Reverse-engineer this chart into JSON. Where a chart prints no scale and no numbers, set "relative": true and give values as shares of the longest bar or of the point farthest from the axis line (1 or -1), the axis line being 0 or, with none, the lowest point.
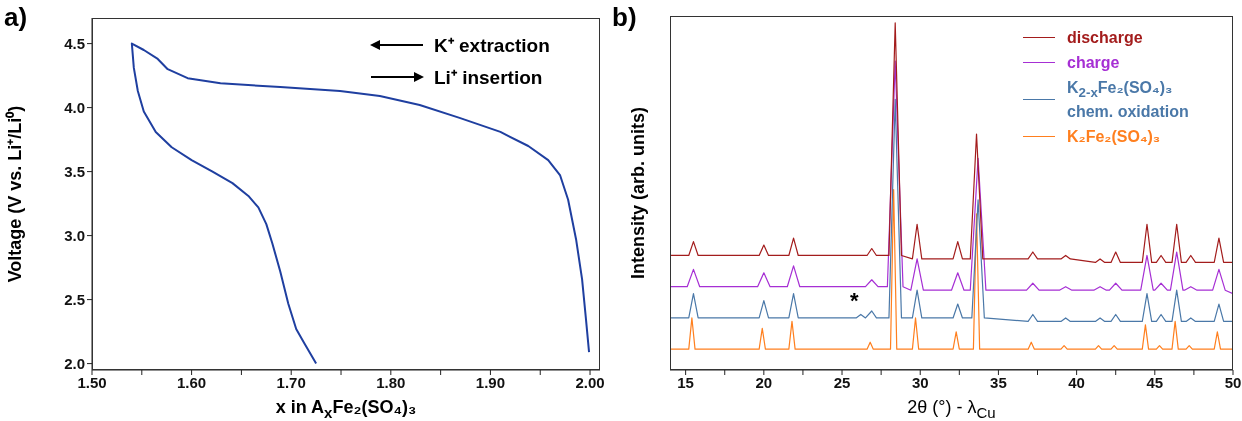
{
  "chart_data": [
    {
      "type": "line",
      "title": "a)",
      "xlabel": "x in A$_{x}$Fe₂(SO₄)₃",
      "ylabel": "Voltage (V vs. Li⁺/Li⁰)",
      "xlim": [
        1.5,
        2.01
      ],
      "xticks": [
        {
          "value": 1.5,
          "label": "1.50"
        },
        {
          "value": 1.55,
          "label": null
        },
        {
          "value": 1.6,
          "label": "1.60"
        },
        {
          "value": 1.65,
          "label": null
        },
        {
          "value": 1.7,
          "label": "1.70"
        },
        {
          "value": 1.75,
          "label": null
        },
        {
          "value": 1.8,
          "label": "1.80"
        },
        {
          "value": 1.85,
          "label": null
        },
        {
          "value": 1.9,
          "label": "1.90"
        },
        {
          "value": 1.95,
          "label": null
        },
        {
          "value": 2.0,
          "label": "2.00"
        }
      ],
      "ylim": [
        1.95,
        4.7
      ],
      "yticks": [
        {
          "value": 2.0,
          "label": "2.0"
        },
        2.5,
        {
          "value": 3.0,
          "label": "3.0"
        },
        3.5,
        {
          "value": 4.0,
          "label": "4.0"
        },
        4.5
      ],
      "annotations": [
        "K⁺ extraction",
        "Li⁺ insertion"
      ],
      "grid": false,
      "legend": false,
      "series": [
        {
          "color": "#1f3fa0",
          "x": [
            1.725,
            1.713,
            1.705,
            1.697,
            1.689,
            1.681,
            1.675,
            1.667,
            1.657,
            1.641,
            1.621,
            1.6,
            1.58,
            1.564,
            1.552,
            1.546,
            1.542,
            1.54,
            1.552,
            1.566,
            1.576,
            1.596,
            1.629,
            1.689,
            1.749,
            1.789,
            1.829,
            1.869,
            1.91,
            1.938,
            1.958,
            1.97,
            1.978,
            1.986,
            1.992,
            1.996,
            1.999
          ],
          "values": [
            2.0,
            2.16,
            2.27,
            2.47,
            2.72,
            2.94,
            3.09,
            3.22,
            3.31,
            3.41,
            3.5,
            3.59,
            3.69,
            3.81,
            3.97,
            4.13,
            4.31,
            4.5,
            4.45,
            4.38,
            4.3,
            4.23,
            4.19,
            4.16,
            4.13,
            4.09,
            4.02,
            3.92,
            3.81,
            3.7,
            3.59,
            3.47,
            3.28,
            2.97,
            2.66,
            2.34,
            2.09
          ]
        }
      ]
    },
    {
      "type": "line",
      "title": "b)",
      "xlabel": "2θ (°) - λ$_{Cu}$",
      "ylabel": "Intensity (arb. units)",
      "relative": true,
      "tick_labels": "x",
      "xlim": [
        14,
        50
      ],
      "xticks": [
        {
          "value": 15,
          "label": "15"
        },
        {
          "value": 17.5,
          "label": null
        },
        20,
        {
          "value": 22.5,
          "label": null
        },
        25,
        {
          "value": 27.5,
          "label": null
        },
        30,
        {
          "value": 32.5,
          "label": null
        },
        35,
        {
          "value": 37.5,
          "label": null
        },
        40,
        {
          "value": 42.5,
          "label": null
        },
        45,
        {
          "value": 47.5,
          "label": null
        },
        50
      ],
      "annotations": [
        "*"
      ],
      "grid": false,
      "legend": "top right",
      "series": [
        {
          "name": "discharge",
          "color": "#a31c1c",
          "x": [
            14,
            15.2,
            15.5,
            15.8,
            19.7,
            20,
            20.3,
            21.6,
            21.9,
            22.2,
            26.6,
            26.9,
            27.2,
            28.0,
            28.4,
            28.8,
            29.5,
            29.8,
            30.1,
            32.1,
            32.4,
            32.7,
            33.2,
            33.6,
            34.0,
            36.9,
            37.2,
            37.5,
            39.0,
            39.3,
            39.6,
            41.2,
            41.5,
            41.8,
            42.2,
            42.5,
            42.8,
            44.2,
            44.5,
            44.8,
            45.1,
            45.4,
            45.7,
            46.1,
            46.4,
            46.7,
            47.0,
            47.3,
            47.6,
            48.8,
            49.1,
            49.4,
            50
          ],
          "values": [
            0.33,
            0.33,
            0.37,
            0.33,
            0.33,
            0.36,
            0.33,
            0.33,
            0.38,
            0.33,
            0.33,
            0.35,
            0.33,
            0.33,
            1.0,
            0.33,
            0.32,
            0.42,
            0.32,
            0.32,
            0.37,
            0.32,
            0.32,
            0.68,
            0.32,
            0.32,
            0.34,
            0.32,
            0.32,
            0.33,
            0.32,
            0.31,
            0.32,
            0.31,
            0.31,
            0.34,
            0.31,
            0.31,
            0.42,
            0.31,
            0.31,
            0.33,
            0.31,
            0.31,
            0.42,
            0.31,
            0.31,
            0.33,
            0.31,
            0.31,
            0.38,
            0.31,
            0.31
          ]
        },
        {
          "name": "charge",
          "color": "#a62fd4",
          "x": [
            14,
            15.1,
            15.5,
            15.9,
            19.6,
            20,
            20.4,
            21.5,
            21.9,
            22.3,
            26.5,
            26.9,
            27.3,
            27.9,
            28.4,
            28.9,
            29.4,
            29.8,
            30.2,
            32.0,
            32.4,
            32.8,
            33.2,
            33.7,
            34.2,
            36.8,
            37.2,
            37.6,
            38.9,
            39.3,
            39.7,
            41.1,
            41.5,
            41.9,
            42.1,
            42.5,
            42.9,
            44.1,
            44.5,
            44.9,
            45.0,
            45.4,
            45.8,
            46.0,
            46.4,
            46.8,
            46.9,
            47.3,
            47.7,
            48.7,
            49.1,
            49.5,
            50
          ],
          "values": [
            0.24,
            0.24,
            0.29,
            0.24,
            0.24,
            0.28,
            0.24,
            0.24,
            0.3,
            0.24,
            0.24,
            0.26,
            0.24,
            0.24,
            0.89,
            0.24,
            0.23,
            0.32,
            0.23,
            0.23,
            0.28,
            0.23,
            0.23,
            0.61,
            0.23,
            0.23,
            0.25,
            0.23,
            0.23,
            0.24,
            0.23,
            0.23,
            0.24,
            0.23,
            0.23,
            0.25,
            0.23,
            0.23,
            0.33,
            0.23,
            0.23,
            0.25,
            0.23,
            0.23,
            0.34,
            0.23,
            0.23,
            0.24,
            0.23,
            0.23,
            0.29,
            0.23,
            0.22
          ]
        },
        {
          "name": "K$_{2-x}$Fe₂(SO₄)₃ chem. oxidation",
          "color": "#4a78a8",
          "x": [
            14,
            15.2,
            15.5,
            15.8,
            19.7,
            20,
            20.3,
            21.6,
            21.9,
            22.2,
            25.9,
            26.2,
            26.5,
            26.9,
            27.2,
            28.0,
            28.4,
            28.8,
            29.5,
            29.8,
            30.1,
            32.1,
            32.4,
            32.7,
            33.3,
            33.7,
            34.1,
            36.9,
            37.2,
            37.5,
            39.0,
            39.3,
            39.6,
            41.2,
            41.5,
            41.8,
            42.2,
            42.5,
            42.8,
            44.2,
            44.5,
            44.8,
            45.1,
            45.4,
            45.7,
            46.1,
            46.4,
            46.7,
            47.0,
            47.3,
            47.6,
            48.8,
            49.1,
            49.4,
            50
          ],
          "values": [
            0.15,
            0.15,
            0.22,
            0.15,
            0.15,
            0.2,
            0.15,
            0.15,
            0.22,
            0.15,
            0.15,
            0.16,
            0.15,
            0.17,
            0.15,
            0.15,
            0.78,
            0.15,
            0.15,
            0.23,
            0.15,
            0.15,
            0.19,
            0.15,
            0.15,
            0.49,
            0.15,
            0.14,
            0.16,
            0.14,
            0.14,
            0.15,
            0.14,
            0.14,
            0.15,
            0.14,
            0.14,
            0.16,
            0.14,
            0.14,
            0.22,
            0.14,
            0.14,
            0.16,
            0.14,
            0.14,
            0.23,
            0.14,
            0.14,
            0.15,
            0.14,
            0.14,
            0.19,
            0.14,
            0.14
          ]
        },
        {
          "name": "K₂Fe₂(SO₄)₃",
          "color": "#ff7f1e",
          "x": [
            14,
            15.2,
            15.4,
            15.6,
            19.7,
            19.9,
            20.1,
            21.6,
            21.8,
            22.0,
            26.6,
            26.8,
            27.0,
            28.1,
            28.3,
            28.5,
            29.5,
            29.7,
            29.9,
            32.1,
            32.3,
            32.5,
            33.4,
            33.6,
            33.8,
            36.9,
            37.1,
            37.3,
            39.0,
            39.2,
            39.4,
            41.2,
            41.4,
            41.6,
            42.2,
            42.4,
            42.6,
            44.2,
            44.4,
            44.6,
            45.1,
            45.3,
            45.5,
            46.1,
            46.3,
            46.5,
            47.0,
            47.2,
            47.4,
            48.8,
            49.0,
            49.2,
            50
          ],
          "values": [
            0.06,
            0.06,
            0.15,
            0.06,
            0.06,
            0.12,
            0.06,
            0.06,
            0.14,
            0.06,
            0.06,
            0.08,
            0.06,
            0.06,
            0.52,
            0.06,
            0.06,
            0.15,
            0.06,
            0.06,
            0.11,
            0.06,
            0.06,
            0.45,
            0.06,
            0.06,
            0.08,
            0.06,
            0.06,
            0.07,
            0.06,
            0.06,
            0.07,
            0.06,
            0.06,
            0.07,
            0.06,
            0.06,
            0.13,
            0.06,
            0.06,
            0.07,
            0.06,
            0.06,
            0.14,
            0.06,
            0.06,
            0.07,
            0.06,
            0.06,
            0.11,
            0.06,
            0.06
          ]
        }
      ]
    }
  ]
}
